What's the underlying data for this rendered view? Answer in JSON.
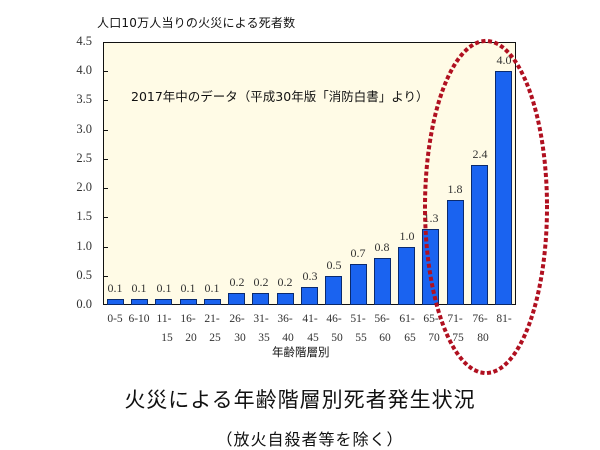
{
  "header": {
    "y_axis_title": "人口10万人当りの火災による死者数",
    "note": "2017年中のデータ（平成30年版「消防白書」より）"
  },
  "footer": {
    "x_axis_title": "年齢階層別",
    "main_title": "火災による年齢階層別死者発生状況",
    "sub_title": "（放火自殺者等を除く）"
  },
  "colors": {
    "bar": "#1a63f0",
    "bar_border": "#0a2a6e",
    "plot_background": "#fffbe6",
    "highlight_ellipse": "#b01020"
  },
  "y_ticks": [
    "0.0",
    "0.5",
    "1.0",
    "1.5",
    "2.0",
    "2.5",
    "3.0",
    "3.5",
    "4.0",
    "4.5"
  ],
  "chart_data": {
    "type": "bar",
    "title": "火災による年齢階層別死者発生状況",
    "subtitle": "（放火自殺者等を除く）",
    "annotation": "2017年中のデータ（平成30年版「消防白書」より）",
    "xlabel": "年齢階層別",
    "ylabel": "人口10万人当りの火災による死者数",
    "ylim": [
      0,
      4.5
    ],
    "y_tick_step": 0.5,
    "grid": false,
    "legend": null,
    "categories": [
      "0-5",
      "6-10",
      "11-15",
      "16-20",
      "21-25",
      "26-30",
      "31-35",
      "36-40",
      "41-45",
      "46-50",
      "51-55",
      "56-60",
      "61-65",
      "65-70",
      "71-75",
      "76-80",
      "81-"
    ],
    "category_labels": [
      [
        "0-5",
        ""
      ],
      [
        "6-10",
        ""
      ],
      [
        "11-",
        "15"
      ],
      [
        "16-",
        "20"
      ],
      [
        "21-",
        "25"
      ],
      [
        "26-",
        "30"
      ],
      [
        "31-",
        "35"
      ],
      [
        "36-",
        "40"
      ],
      [
        "41-",
        "45"
      ],
      [
        "46-",
        "50"
      ],
      [
        "51-",
        "55"
      ],
      [
        "56-",
        "60"
      ],
      [
        "61-",
        "65"
      ],
      [
        "65-",
        "70"
      ],
      [
        "71-",
        "75"
      ],
      [
        "76-",
        "80"
      ],
      [
        "81-",
        ""
      ]
    ],
    "values": [
      0.1,
      0.1,
      0.1,
      0.1,
      0.1,
      0.2,
      0.2,
      0.2,
      0.3,
      0.5,
      0.7,
      0.8,
      1.0,
      1.3,
      1.8,
      2.4,
      4.0
    ],
    "value_labels": [
      "0.1",
      "0.1",
      "0.1",
      "0.1",
      "0.1",
      "0.2",
      "0.2",
      "0.2",
      "0.3",
      "0.5",
      "0.7",
      "0.8",
      "1.0",
      "1.3",
      "1.8",
      "2.4",
      "4.0"
    ],
    "highlight": {
      "shape": "dotted-ellipse",
      "covers_categories": [
        "65-70",
        "71-75",
        "76-80",
        "81-"
      ]
    }
  }
}
